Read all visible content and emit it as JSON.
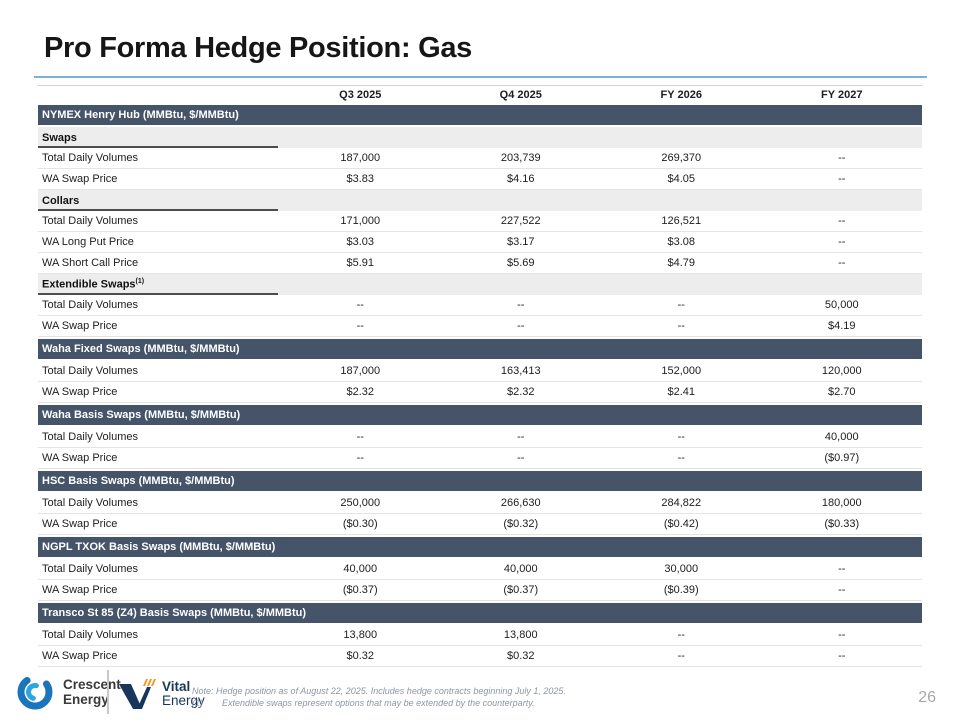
{
  "slide": {
    "title": "Pro Forma Hedge Position: Gas",
    "page_number": "26"
  },
  "table": {
    "columns": [
      "Q3 2025",
      "Q4 2025",
      "FY 2026",
      "FY 2027"
    ],
    "rows": [
      {
        "type": "band",
        "label": "NYMEX Henry Hub (MMBtu, $/MMBtu)"
      },
      {
        "type": "subheader",
        "label": "Swaps",
        "sup": ""
      },
      {
        "type": "data",
        "label": "Total Daily Volumes",
        "values": [
          "187,000",
          "203,739",
          "269,370",
          "--"
        ]
      },
      {
        "type": "data",
        "label": "WA Swap Price",
        "values": [
          "$3.83",
          "$4.16",
          "$4.05",
          "--"
        ]
      },
      {
        "type": "subheader",
        "label": "Collars",
        "sup": ""
      },
      {
        "type": "data",
        "label": "Total Daily Volumes",
        "values": [
          "171,000",
          "227,522",
          "126,521",
          "--"
        ]
      },
      {
        "type": "data",
        "label": "WA Long Put Price",
        "values": [
          "$3.03",
          "$3.17",
          "$3.08",
          "--"
        ]
      },
      {
        "type": "data",
        "label": "WA Short Call Price",
        "values": [
          "$5.91",
          "$5.69",
          "$4.79",
          "--"
        ]
      },
      {
        "type": "subheader",
        "label": "Extendible Swaps",
        "sup": "(1)"
      },
      {
        "type": "data",
        "label": "Total Daily Volumes",
        "values": [
          "--",
          "--",
          "--",
          "50,000"
        ]
      },
      {
        "type": "data",
        "label": "WA Swap Price",
        "values": [
          "--",
          "--",
          "--",
          "$4.19"
        ]
      },
      {
        "type": "band",
        "label": "Waha Fixed Swaps (MMBtu, $/MMBtu)"
      },
      {
        "type": "data",
        "label": "Total Daily Volumes",
        "values": [
          "187,000",
          "163,413",
          "152,000",
          "120,000"
        ]
      },
      {
        "type": "data",
        "label": "WA Swap Price",
        "values": [
          "$2.32",
          "$2.32",
          "$2.41",
          "$2.70"
        ]
      },
      {
        "type": "band",
        "label": "Waha Basis Swaps (MMBtu, $/MMBtu)"
      },
      {
        "type": "data",
        "label": "Total Daily Volumes",
        "values": [
          "--",
          "--",
          "--",
          "40,000"
        ]
      },
      {
        "type": "data",
        "label": "WA Swap Price",
        "values": [
          "--",
          "--",
          "--",
          "($0.97)"
        ]
      },
      {
        "type": "band",
        "label": "HSC Basis Swaps (MMBtu, $/MMBtu)"
      },
      {
        "type": "data",
        "label": "Total Daily Volumes",
        "values": [
          "250,000",
          "266,630",
          "284,822",
          "180,000"
        ]
      },
      {
        "type": "data",
        "label": "WA Swap Price",
        "values": [
          "($0.30)",
          "($0.32)",
          "($0.42)",
          "($0.33)"
        ]
      },
      {
        "type": "band",
        "label": "NGPL TXOK Basis Swaps (MMBtu, $/MMBtu)"
      },
      {
        "type": "data",
        "label": "Total Daily Volumes",
        "values": [
          "40,000",
          "40,000",
          "30,000",
          "--"
        ]
      },
      {
        "type": "data",
        "label": "WA Swap Price",
        "values": [
          "($0.37)",
          "($0.37)",
          "($0.39)",
          "--"
        ]
      },
      {
        "type": "band",
        "label": "Transco St 85 (Z4) Basis Swaps (MMBtu, $/MMBtu)"
      },
      {
        "type": "data",
        "label": "Total Daily Volumes",
        "values": [
          "13,800",
          "13,800",
          "--",
          "--"
        ]
      },
      {
        "type": "data",
        "label": "WA Swap Price",
        "values": [
          "$0.32",
          "$0.32",
          "--",
          "--"
        ]
      }
    ]
  },
  "footer": {
    "crescent_line1": "Crescent",
    "crescent_line2": "Energy",
    "vital_line1": "Vital",
    "vital_line2": "Energy",
    "note_line1": "Note: Hedge position as of August 22, 2025. Includes hedge contracts beginning July 1, 2025.",
    "note_marker": "(1)",
    "note_line2": "Extendible swaps represent options that may be extended by the counterparty."
  },
  "colors": {
    "band_bg": "#455469",
    "rule_blue": "#7EB2D4",
    "vital_navy": "#16365C",
    "vital_orange": "#F7941D",
    "crescent_blue": "#1B75BC",
    "crescent_light_blue": "#2BA7DF",
    "note_gray": "#8C96A6",
    "page_number_gray": "#A8A8A8"
  }
}
